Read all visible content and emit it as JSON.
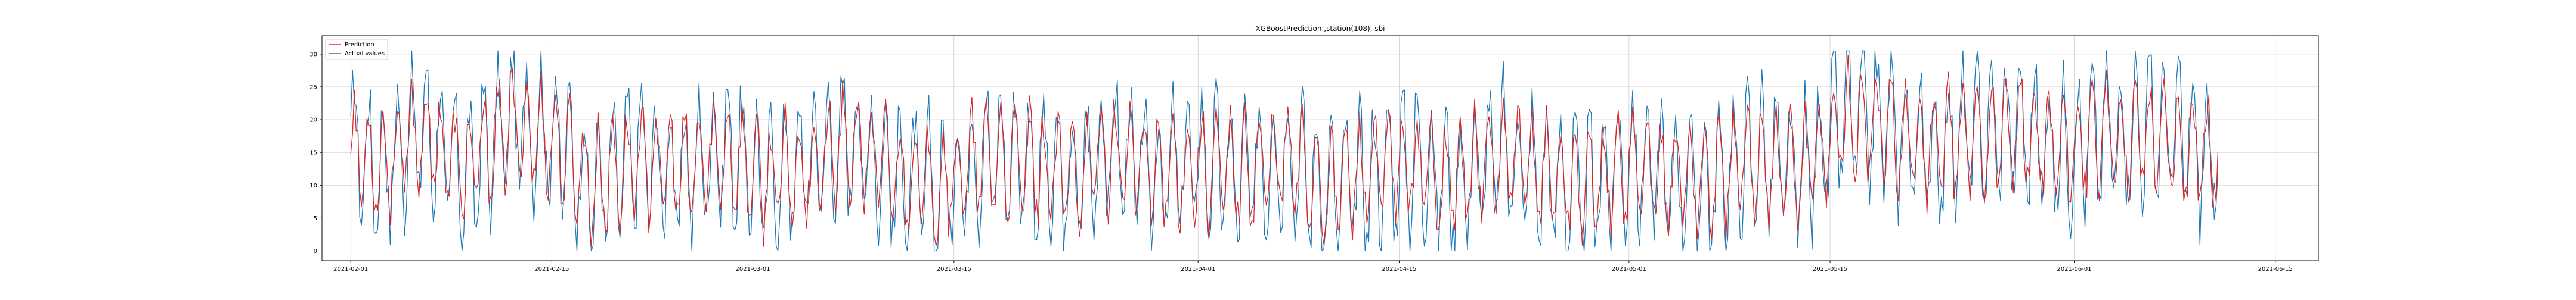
{
  "chart_data": {
    "type": "line",
    "title": "XGBoostPrediction ,station(108), sbi",
    "xlabel": "",
    "ylabel": "",
    "x_start": "2021-01-30",
    "x_end": "2021-06-18",
    "x_ticks": [
      "2021-02-01",
      "2021-02-15",
      "2021-03-01",
      "2021-03-15",
      "2021-04-01",
      "2021-04-15",
      "2021-05-01",
      "2021-05-15",
      "2021-06-01",
      "2021-06-15"
    ],
    "ylim": [
      -1.5,
      32.8
    ],
    "y_ticks": [
      0,
      5,
      10,
      15,
      20,
      25,
      30
    ],
    "y_tick_labels": [
      "0",
      "5",
      "10",
      "15",
      "20",
      "25",
      "30"
    ],
    "grid": true,
    "legend_position": "top-left",
    "series": [
      {
        "name": "Prediction",
        "color": "#d62728",
        "x": [
          "2021-02-01",
          "2021-02-03",
          "2021-02-06",
          "2021-02-09",
          "2021-02-12",
          "2021-02-15",
          "2021-02-18",
          "2021-02-21",
          "2021-02-24",
          "2021-02-27",
          "2021-03-02",
          "2021-03-05",
          "2021-03-08",
          "2021-03-11",
          "2021-03-14",
          "2021-03-17",
          "2021-03-20",
          "2021-03-23",
          "2021-03-26",
          "2021-03-29",
          "2021-04-01",
          "2021-04-04",
          "2021-04-07",
          "2021-04-10",
          "2021-04-13",
          "2021-04-16",
          "2021-04-19",
          "2021-04-22",
          "2021-04-25",
          "2021-04-28",
          "2021-05-01",
          "2021-05-04",
          "2021-05-07",
          "2021-05-10",
          "2021-05-13",
          "2021-05-16",
          "2021-05-19",
          "2021-05-22",
          "2021-05-25",
          "2021-05-28",
          "2021-05-31",
          "2021-06-03",
          "2021-06-06",
          "2021-06-09",
          "2021-06-11"
        ],
        "values": [
          16,
          13,
          18,
          12,
          19,
          17,
          10,
          14,
          12,
          15,
          11,
          13,
          16,
          12,
          10,
          14,
          13,
          11,
          15,
          12,
          13,
          12,
          14,
          10,
          12,
          13,
          11,
          14,
          12,
          10,
          13,
          12,
          11,
          14,
          12,
          20,
          18,
          16,
          17,
          18,
          16,
          17,
          18,
          16,
          15
        ]
      },
      {
        "name": "Actual values",
        "color": "#1f77b4",
        "x": [
          "2021-02-01",
          "2021-02-03",
          "2021-02-06",
          "2021-02-09",
          "2021-02-12",
          "2021-02-15",
          "2021-02-18",
          "2021-02-21",
          "2021-02-24",
          "2021-02-27",
          "2021-03-02",
          "2021-03-05",
          "2021-03-08",
          "2021-03-11",
          "2021-03-14",
          "2021-03-17",
          "2021-03-20",
          "2021-03-23",
          "2021-03-26",
          "2021-03-29",
          "2021-04-01",
          "2021-04-04",
          "2021-04-07",
          "2021-04-10",
          "2021-04-13",
          "2021-04-16",
          "2021-04-19",
          "2021-04-22",
          "2021-04-25",
          "2021-04-28",
          "2021-05-01",
          "2021-05-04",
          "2021-05-07",
          "2021-05-10",
          "2021-05-13",
          "2021-05-16",
          "2021-05-19",
          "2021-05-22",
          "2021-05-25",
          "2021-05-28",
          "2021-05-31",
          "2021-06-03",
          "2021-06-06",
          "2021-06-09",
          "2021-06-11"
        ],
        "values": [
          17,
          12,
          19,
          11,
          20,
          18,
          9,
          15,
          11,
          16,
          10,
          14,
          17,
          11,
          9,
          15,
          14,
          10,
          16,
          11,
          14,
          11,
          15,
          9,
          11,
          14,
          10,
          15,
          11,
          9,
          14,
          11,
          10,
          15,
          11,
          21,
          19,
          15,
          18,
          19,
          15,
          18,
          19,
          17,
          12
        ]
      }
    ]
  }
}
